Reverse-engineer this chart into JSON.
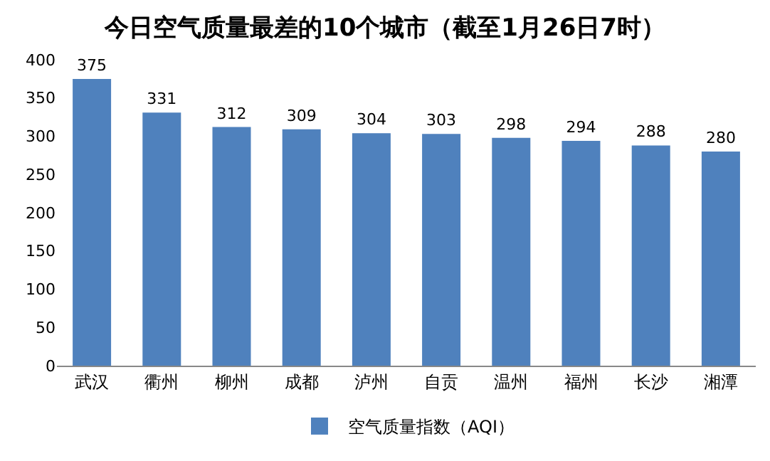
{
  "chart_data": {
    "type": "bar",
    "title": "今日空气质量最差的10个城市（截至1月26日7时）",
    "categories": [
      "武汉",
      "衢州",
      "柳州",
      "成都",
      "泸州",
      "自贡",
      "温州",
      "福州",
      "长沙",
      "湘潭"
    ],
    "series": [
      {
        "name": "空气质量指数（AQI）",
        "color": "#4f81bd",
        "values": [
          375,
          331,
          312,
          309,
          304,
          303,
          298,
          294,
          288,
          280
        ]
      }
    ],
    "ylim": [
      0,
      400
    ],
    "yticks": [
      0,
      50,
      100,
      150,
      200,
      250,
      300,
      350,
      400
    ],
    "grid": false,
    "legend": "bottom",
    "data_labels": true
  }
}
